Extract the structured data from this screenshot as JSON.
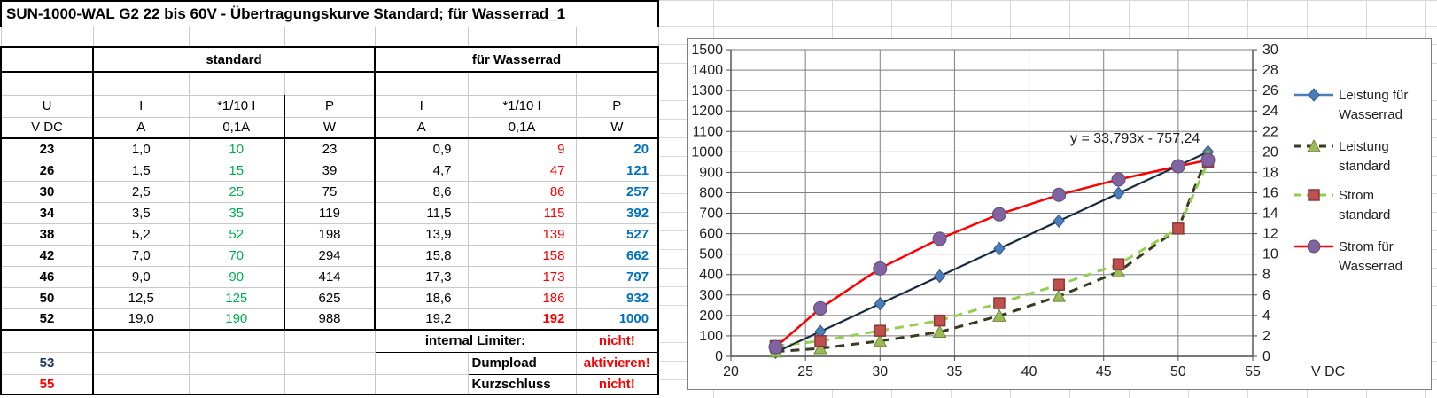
{
  "title": "SUN-1000-WAL G2 22 bis 60V - Übertragungskurve Standard; für Wasserrad_1",
  "colors": {
    "green": "#00b050",
    "red": "#ff0000",
    "blue": "#0070c0",
    "navy": "#1f3864",
    "series_blue": "#4a7ebb",
    "series_dark_olive": "#3a3a22",
    "series_light_green": "#92d050",
    "series_red": "#ff0000",
    "marker_green": "#9bbb59",
    "marker_brick": "#c0504d",
    "marker_purple": "#8064a2",
    "trendline": "#1f1f1f"
  },
  "table": {
    "group_headers": {
      "standard": "standard",
      "wasserrad": "für Wasserrad"
    },
    "col_headers": {
      "u": "U",
      "i": "I",
      "i10": "*1/10 I",
      "p": "P"
    },
    "unit_headers": {
      "u": "V DC",
      "i": "A",
      "i10": "0,1A",
      "p": "W"
    },
    "rows": [
      {
        "u": "23",
        "i_std": "1,0",
        "i10_std": "10",
        "p_std": "23",
        "i_w": "0,9",
        "i10_w": "9",
        "p_w": "20"
      },
      {
        "u": "26",
        "i_std": "1,5",
        "i10_std": "15",
        "p_std": "39",
        "i_w": "4,7",
        "i10_w": "47",
        "p_w": "121"
      },
      {
        "u": "30",
        "i_std": "2,5",
        "i10_std": "25",
        "p_std": "75",
        "i_w": "8,6",
        "i10_w": "86",
        "p_w": "257"
      },
      {
        "u": "34",
        "i_std": "3,5",
        "i10_std": "35",
        "p_std": "119",
        "i_w": "11,5",
        "i10_w": "115",
        "p_w": "392"
      },
      {
        "u": "38",
        "i_std": "5,2",
        "i10_std": "52",
        "p_std": "198",
        "i_w": "13,9",
        "i10_w": "139",
        "p_w": "527"
      },
      {
        "u": "42",
        "i_std": "7,0",
        "i10_std": "70",
        "p_std": "294",
        "i_w": "15,8",
        "i10_w": "158",
        "p_w": "662"
      },
      {
        "u": "46",
        "i_std": "9,0",
        "i10_std": "90",
        "p_std": "414",
        "i_w": "17,3",
        "i10_w": "173",
        "p_w": "797"
      },
      {
        "u": "50",
        "i_std": "12,5",
        "i10_std": "125",
        "p_std": "625",
        "i_w": "18,6",
        "i10_w": "186",
        "p_w": "932"
      },
      {
        "u": "52",
        "i_std": "19,0",
        "i10_std": "190",
        "p_std": "988",
        "i_w": "19,2",
        "i10_w": "192",
        "p_w": "1000",
        "emphasis": true
      }
    ],
    "footer": {
      "limiter_label": "internal Limiter:",
      "limiter_value": "nicht!",
      "row53": {
        "u": "53",
        "label": "Dumpload",
        "value": "aktivieren!"
      },
      "row55": {
        "u": "55",
        "label": "Kurzschluss",
        "value": "nicht!"
      }
    }
  },
  "chart_data": {
    "type": "line",
    "x": [
      23,
      26,
      30,
      34,
      38,
      42,
      46,
      50,
      52
    ],
    "series": [
      {
        "name": "Leistung für Wasserrad",
        "axis": "left",
        "values": [
          20,
          121,
          257,
          392,
          527,
          662,
          797,
          932,
          1000
        ],
        "color": "#4a7ebb",
        "marker": "diamond",
        "marker_color": "#4a7ebb",
        "dash": false
      },
      {
        "name": "Leistung standard",
        "axis": "left",
        "values": [
          23,
          39,
          75,
          119,
          198,
          294,
          414,
          625,
          988
        ],
        "color": "#3a3a22",
        "marker": "triangle",
        "marker_color": "#9bbb59",
        "dash": true
      },
      {
        "name": "Strom standard",
        "axis": "right",
        "values": [
          1.0,
          1.5,
          2.5,
          3.5,
          5.2,
          7.0,
          9.0,
          12.5,
          19.0
        ],
        "color": "#92d050",
        "marker": "square",
        "marker_color": "#c0504d",
        "dash": true
      },
      {
        "name": "Strom für Wasserrad",
        "axis": "right",
        "values": [
          0.9,
          4.7,
          8.6,
          11.5,
          13.9,
          15.8,
          17.3,
          18.6,
          19.2
        ],
        "color": "#ff0000",
        "marker": "circle",
        "marker_color": "#8064a2",
        "dash": false
      }
    ],
    "trendline": {
      "slope": 33.793,
      "intercept": -757.24,
      "label": "y = 33,793x - 757,24",
      "x_range": [
        23,
        52
      ],
      "color": "#1f1f1f"
    },
    "left_axis": {
      "min": 0,
      "max": 1500,
      "step": 100
    },
    "right_axis": {
      "min": 0,
      "max": 30,
      "step": 2
    },
    "x_axis": {
      "min": 20,
      "max": 55,
      "step": 5,
      "label": "V DC"
    },
    "grid": true,
    "legend_position": "right"
  }
}
